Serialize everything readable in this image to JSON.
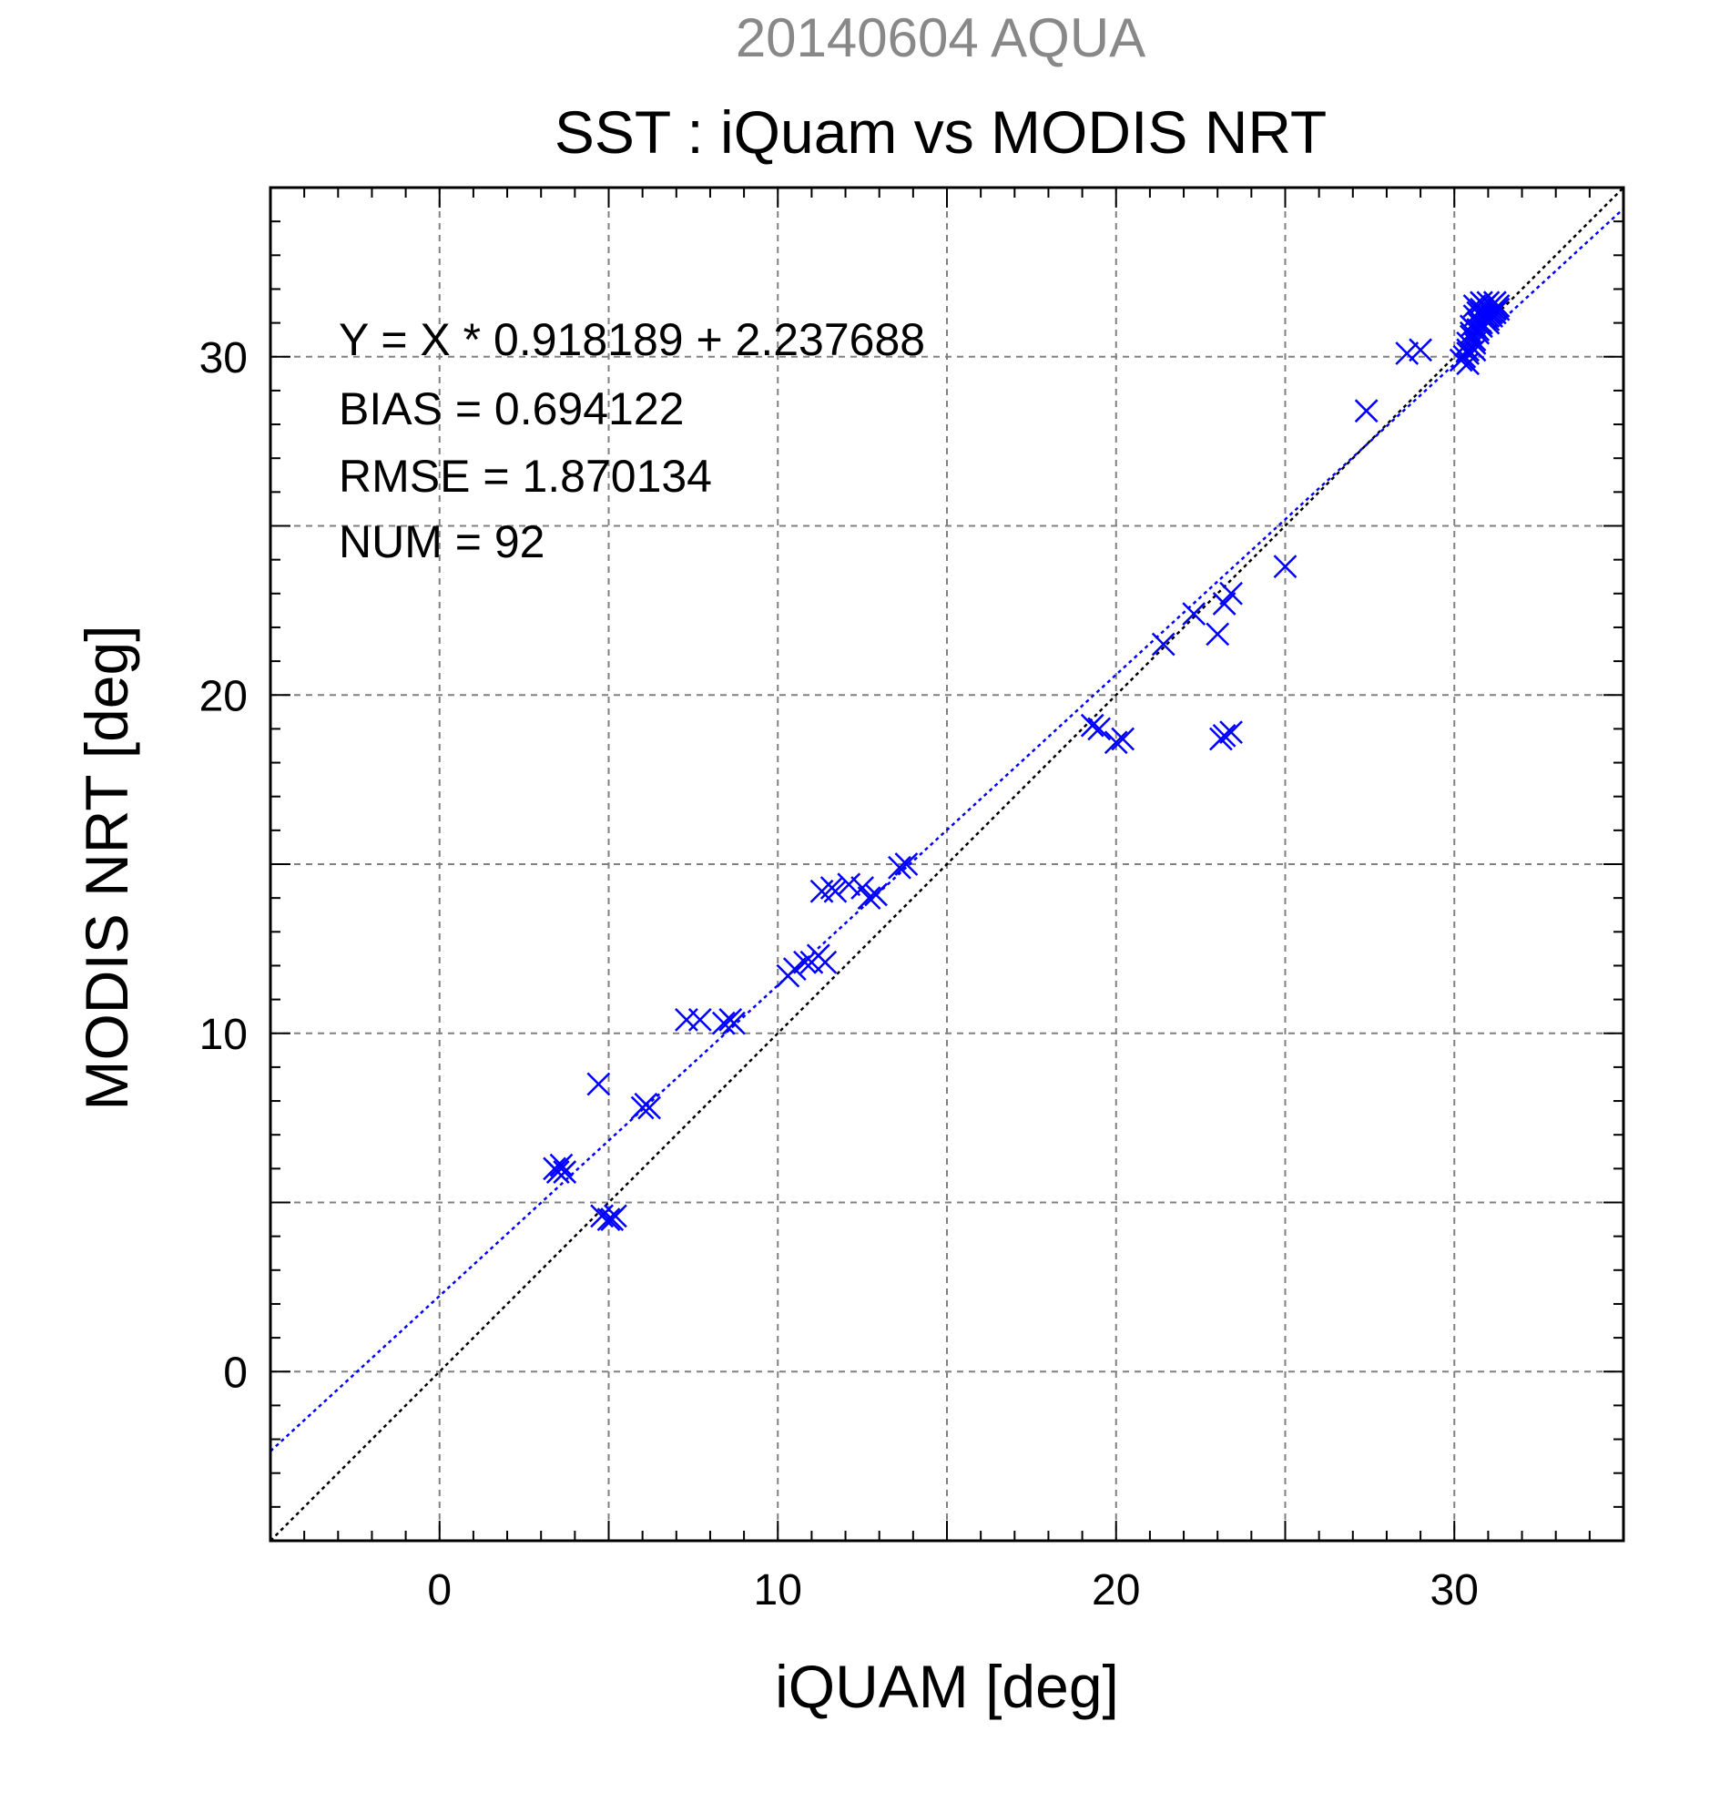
{
  "chart_data": {
    "type": "scatter",
    "title": "SST : iQuam vs MODIS NRT",
    "subtitle": "20140604 AQUA",
    "xlabel": "iQUAM [deg]",
    "ylabel": "MODIS NRT [deg]",
    "xlim": [
      -5,
      35
    ],
    "ylim": [
      -5,
      35
    ],
    "xticks": [
      0,
      10,
      20,
      30
    ],
    "yticks": [
      0,
      10,
      20,
      30
    ],
    "xtick_labels": [
      "0",
      "10",
      "20",
      "30"
    ],
    "ytick_labels": [
      "0",
      "10",
      "20",
      "30"
    ],
    "grid": true,
    "marker": "x",
    "colors": {
      "points": "#0000ff",
      "fit_line": "#0000ff",
      "identity_line": "#000000",
      "grid": "#808080",
      "subtitle": "#888888",
      "text": "#000000"
    },
    "stats_lines": [
      "Y = X * 0.918189 + 2.237688",
      "BIAS = 0.694122",
      "RMSE = 1.870134",
      "NUM = 92"
    ],
    "fit": {
      "slope": 0.918189,
      "intercept": 2.237688
    },
    "identity": {
      "slope": 1,
      "intercept": 0
    },
    "series": [
      {
        "x": [
          3.4,
          3.6,
          3.5,
          3.7,
          4.7,
          4.8,
          5.0,
          5.1,
          5.2,
          6.0,
          6.1,
          6.2,
          7.3,
          7.7,
          8.4,
          8.6,
          8.7,
          10.3,
          10.5,
          10.8,
          11.0,
          11.2,
          11.4,
          11.3,
          11.6,
          11.7,
          12.1,
          12.5,
          12.7,
          12.9,
          13.6,
          13.8,
          19.3,
          19.5,
          20.0,
          20.2,
          21.4,
          22.3,
          23.0,
          23.2,
          23.4,
          23.2,
          23.4,
          23.1,
          25.0,
          27.4,
          28.6,
          29.0,
          30.2,
          30.4,
          30.4,
          30.5,
          30.5,
          30.6,
          30.6,
          30.7,
          30.7,
          30.7,
          30.8,
          30.8,
          30.9,
          30.9,
          31.0,
          31.0,
          31.1,
          31.1,
          31.2,
          31.2,
          31.3,
          31.3,
          30.3,
          30.4,
          30.5,
          30.6,
          30.7,
          30.8,
          30.9,
          31.0,
          30.6,
          30.8,
          31.0,
          31.2,
          30.5,
          30.7,
          30.9,
          31.1,
          30.4,
          30.6,
          30.8,
          31.0,
          31.2,
          30.6
        ],
        "y": [
          6.0,
          6.1,
          5.9,
          5.9,
          8.5,
          4.6,
          4.5,
          4.5,
          4.6,
          7.8,
          7.9,
          7.8,
          10.4,
          10.4,
          10.3,
          10.4,
          10.3,
          11.7,
          11.9,
          12.1,
          12.1,
          12.3,
          12.1,
          14.2,
          14.3,
          14.2,
          14.4,
          14.3,
          14.0,
          14.1,
          14.9,
          15.0,
          19.1,
          19.0,
          18.6,
          18.7,
          21.5,
          22.4,
          21.8,
          22.7,
          23.0,
          18.8,
          18.9,
          18.7,
          23.8,
          28.4,
          30.1,
          30.2,
          29.9,
          30.2,
          30.4,
          30.7,
          30.9,
          31.2,
          31.5,
          31.3,
          31.0,
          30.8,
          31.4,
          31.6,
          31.5,
          31.2,
          31.6,
          31.4,
          31.2,
          31.5,
          31.3,
          31.6,
          31.4,
          31.5,
          30.0,
          30.1,
          30.3,
          30.5,
          30.7,
          30.9,
          31.1,
          31.0,
          30.8,
          31.3,
          31.2,
          31.4,
          30.6,
          31.1,
          31.5,
          31.3,
          29.8,
          30.2,
          31.0,
          31.1,
          31.6,
          30.4
        ]
      }
    ]
  }
}
